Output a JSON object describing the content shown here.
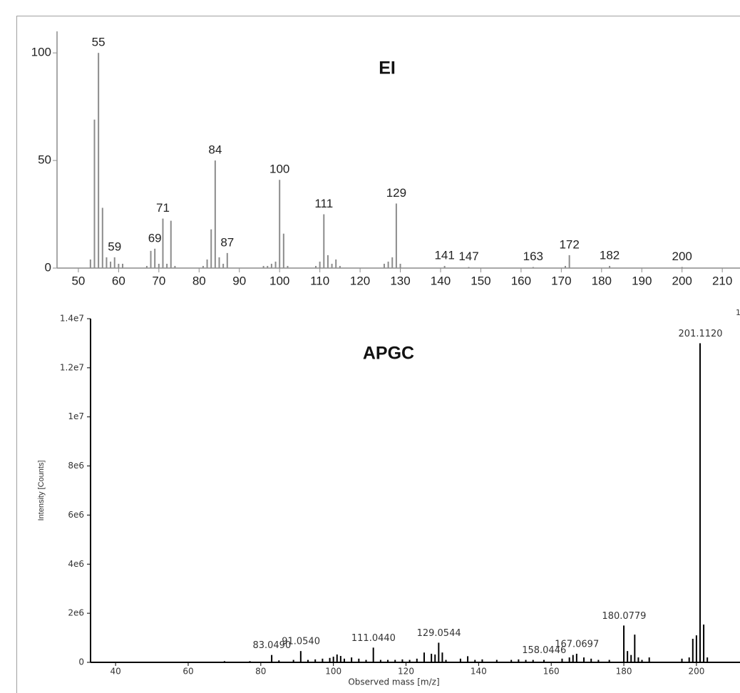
{
  "chart_data": [
    {
      "type": "bar",
      "title": "EI",
      "color": "#8c8c8c",
      "x": [
        53,
        54,
        55,
        56,
        57,
        58,
        59,
        60,
        61,
        67,
        68,
        69,
        70,
        71,
        72,
        73,
        74,
        81,
        82,
        83,
        84,
        85,
        86,
        87,
        96,
        97,
        98,
        99,
        100,
        101,
        102,
        109,
        110,
        111,
        112,
        113,
        114,
        115,
        126,
        127,
        128,
        129,
        130,
        141,
        147,
        163,
        171,
        172,
        182,
        200
      ],
      "values": [
        4,
        69,
        100,
        28,
        5,
        3,
        5,
        2,
        2,
        1,
        8,
        9,
        2,
        23,
        2,
        22,
        1,
        1,
        4,
        18,
        50,
        5,
        2,
        7,
        1,
        1,
        2,
        3,
        41,
        16,
        1,
        1,
        3,
        25,
        6,
        2,
        4,
        1,
        2,
        3,
        5,
        30,
        2,
        1,
        0.5,
        0.5,
        1,
        6,
        1,
        0.5
      ],
      "labeled_x": [
        55,
        59,
        69,
        71,
        84,
        87,
        100,
        111,
        129,
        141,
        147,
        163,
        172,
        182,
        200
      ],
      "xlim": [
        44.7,
        214.4
      ],
      "xticks": [
        50,
        60,
        70,
        80,
        90,
        100,
        110,
        120,
        130,
        140,
        150,
        160,
        170,
        180,
        190,
        200,
        210
      ],
      "ylim": [
        0,
        110
      ],
      "yticks": [
        0,
        50,
        100
      ]
    },
    {
      "type": "bar",
      "title": "APGC",
      "color": "#000000",
      "x_label": "Observed mass [m/z]",
      "y_label": "Intensity [Counts]",
      "x": [
        70,
        77,
        83,
        85,
        89,
        91,
        93,
        95,
        97,
        99,
        100,
        101,
        102,
        103,
        105,
        107,
        109,
        111,
        113,
        115,
        117,
        119,
        121,
        123,
        125,
        127,
        128,
        129,
        130,
        131,
        135,
        137,
        139,
        141,
        145,
        149,
        151,
        153,
        155,
        158,
        163,
        165,
        166,
        167,
        169,
        171,
        173,
        176,
        180,
        181,
        182,
        183,
        184,
        185,
        187,
        196,
        198,
        199,
        200,
        201,
        202,
        203
      ],
      "values": [
        50000,
        50000,
        300000,
        80000,
        100000,
        460000,
        100000,
        120000,
        150000,
        180000,
        230000,
        320000,
        260000,
        150000,
        200000,
        150000,
        100000,
        600000,
        100000,
        100000,
        100000,
        120000,
        100000,
        150000,
        400000,
        350000,
        320000,
        800000,
        400000,
        100000,
        150000,
        250000,
        100000,
        120000,
        100000,
        100000,
        120000,
        100000,
        100000,
        100000,
        150000,
        200000,
        300000,
        350000,
        200000,
        150000,
        100000,
        100000,
        1500000,
        460000,
        300000,
        1130000,
        200000,
        100000,
        200000,
        150000,
        200000,
        960000,
        1100000,
        13000000,
        1540000,
        200000
      ],
      "peak_labels": [
        {
          "value": 83.049,
          "label": "83.0490"
        },
        {
          "value": 91.054,
          "label": "91.0540"
        },
        {
          "value": 111.044,
          "label": "111.0440"
        },
        {
          "value": 129.0544,
          "label": "129.0544"
        },
        {
          "value": 158.0446,
          "label": "158.0446"
        },
        {
          "value": 167.0697,
          "label": "167.0697"
        },
        {
          "value": 180.0779,
          "label": "180.0779"
        },
        {
          "value": 201.112,
          "label": "201.1120"
        }
      ],
      "corner_text": "1",
      "xlim": [
        33.1,
        212
      ],
      "xticks": [
        40,
        60,
        80,
        100,
        120,
        140,
        160,
        180,
        200
      ],
      "ylim": [
        0,
        14000000
      ],
      "yticks": [
        0,
        {
          "value": 2000000,
          "label": "2e6"
        },
        {
          "value": 4000000,
          "label": "4e6"
        },
        {
          "value": 6000000,
          "label": "6e6"
        },
        {
          "value": 8000000,
          "label": "8e6"
        },
        {
          "value": 10000000,
          "label": "1e7"
        },
        {
          "value": 12000000,
          "label": "1.2e7"
        },
        {
          "value": 14000000,
          "label": "1.4e7"
        }
      ]
    }
  ]
}
